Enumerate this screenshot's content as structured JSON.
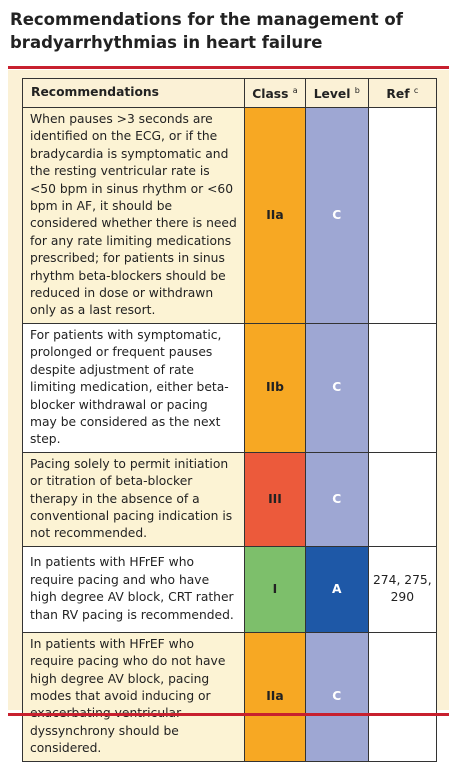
{
  "header": {
    "title": "Recommendations for the management of bradyarrhythmias in heart failure"
  },
  "table": {
    "columns": [
      {
        "label": "Recommendations"
      },
      {
        "label": "Class",
        "sup": "a"
      },
      {
        "label": "Level",
        "sup": "b"
      },
      {
        "label": "Ref",
        "sup": "c"
      }
    ],
    "rows": [
      [
        "When pauses >3 seconds are identified on the ECG, or if the bradycardia is symptomatic and the resting ventricular rate is <50 bpm in sinus rhythm or <60 bpm in AF, it should be considered whether there is need for any rate limiting medications prescribed; for patients in sinus rhythm beta-blockers should be reduced in dose or withdrawn only as a last resort.",
        "IIa",
        "C",
        ""
      ],
      [
        "For patients with symptomatic, prolonged or frequent pauses despite adjustment of rate limiting medication, either beta-blocker withdrawal or pacing may be considered as the next step.",
        "IIb",
        "C",
        ""
      ],
      [
        "Pacing solely to permit initiation or titration of beta-blocker therapy in the absence of a conventional pacing indication is not recommended.",
        "III",
        "C",
        ""
      ],
      [
        "In patients with HFrEF who require pacing and who have high degree AV block, CRT rather than RV pacing is recommended.",
        "I",
        "A",
        "274, 275, 290"
      ],
      [
        "In patients with HFrEF who require pacing who do not have high degree AV block, pacing modes that avoid inducing or exacerbating ventricular dyssynchrony should be considered.",
        "IIa",
        "C",
        ""
      ]
    ]
  }
}
